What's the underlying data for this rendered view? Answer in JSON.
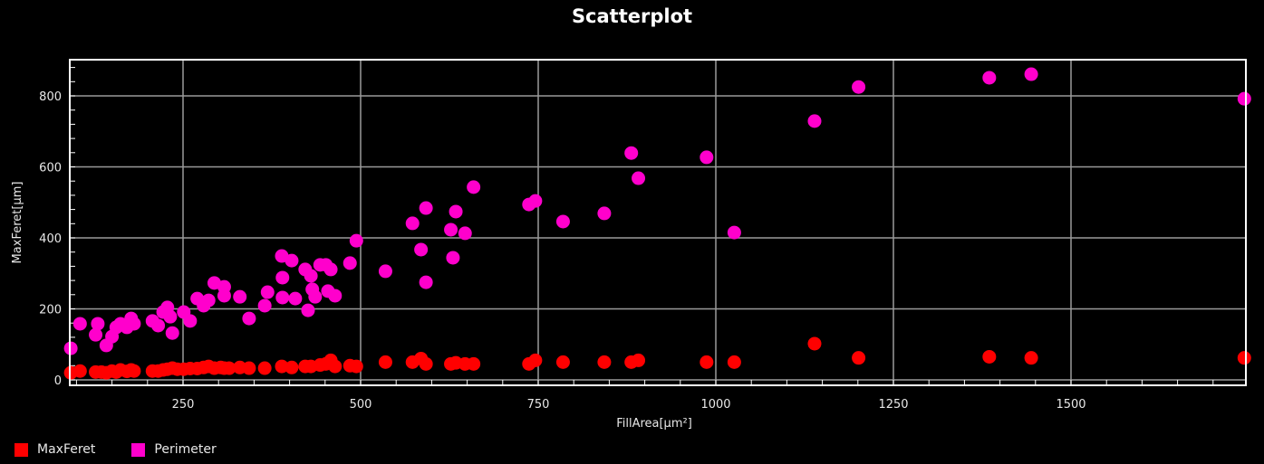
{
  "chart_data": {
    "type": "scatter",
    "title": "Scatterplot",
    "xlabel": "FillArea[µm²]",
    "ylabel": "MaxFeret[µm]",
    "xlim": [
      90,
      1746
    ],
    "ylim": [
      -15,
      900
    ],
    "xticks": [
      250,
      500,
      750,
      1000,
      1250,
      1500
    ],
    "yticks": [
      0,
      200,
      400,
      600,
      800
    ],
    "grid": true,
    "legend_position": "bottom-left",
    "series": [
      {
        "name": "MaxFeret",
        "color": "#ff0000",
        "points": [
          [
            92,
            20
          ],
          [
            105,
            25
          ],
          [
            127,
            22
          ],
          [
            135,
            22
          ],
          [
            142,
            20
          ],
          [
            150,
            25
          ],
          [
            156,
            22
          ],
          [
            162,
            28
          ],
          [
            171,
            24
          ],
          [
            177,
            28
          ],
          [
            181,
            25
          ],
          [
            207,
            25
          ],
          [
            215,
            25
          ],
          [
            222,
            28
          ],
          [
            228,
            30
          ],
          [
            235,
            33
          ],
          [
            242,
            30
          ],
          [
            251,
            30
          ],
          [
            260,
            32
          ],
          [
            270,
            32
          ],
          [
            279,
            35
          ],
          [
            286,
            38
          ],
          [
            294,
            33
          ],
          [
            303,
            35
          ],
          [
            308,
            33
          ],
          [
            315,
            33
          ],
          [
            330,
            35
          ],
          [
            343,
            33
          ],
          [
            365,
            33
          ],
          [
            389,
            38
          ],
          [
            403,
            35
          ],
          [
            422,
            38
          ],
          [
            430,
            38
          ],
          [
            443,
            42
          ],
          [
            451,
            45
          ],
          [
            458,
            55
          ],
          [
            464,
            38
          ],
          [
            485,
            40
          ],
          [
            494,
            38
          ],
          [
            535,
            50
          ],
          [
            573,
            50
          ],
          [
            585,
            60
          ],
          [
            592,
            45
          ],
          [
            627,
            45
          ],
          [
            634,
            48
          ],
          [
            647,
            45
          ],
          [
            659,
            45
          ],
          [
            737,
            45
          ],
          [
            746,
            55
          ],
          [
            785,
            50
          ],
          [
            843,
            50
          ],
          [
            881,
            50
          ],
          [
            891,
            55
          ],
          [
            987,
            50
          ],
          [
            1026,
            50
          ],
          [
            1139,
            102
          ],
          [
            1201,
            62
          ],
          [
            1385,
            65
          ],
          [
            1444,
            62
          ],
          [
            1744,
            62
          ]
        ]
      },
      {
        "name": "Perimeter",
        "color": "#ff00cc",
        "points": [
          [
            92,
            89
          ],
          [
            105,
            158
          ],
          [
            127,
            127
          ],
          [
            130,
            158
          ],
          [
            142,
            97
          ],
          [
            150,
            122
          ],
          [
            156,
            148
          ],
          [
            162,
            158
          ],
          [
            171,
            148
          ],
          [
            177,
            173
          ],
          [
            181,
            158
          ],
          [
            207,
            166
          ],
          [
            215,
            153
          ],
          [
            222,
            191
          ],
          [
            228,
            204
          ],
          [
            232,
            178
          ],
          [
            235,
            132
          ],
          [
            251,
            191
          ],
          [
            260,
            166
          ],
          [
            270,
            229
          ],
          [
            279,
            209
          ],
          [
            286,
            224
          ],
          [
            294,
            273
          ],
          [
            308,
            262
          ],
          [
            308,
            237
          ],
          [
            330,
            234
          ],
          [
            343,
            173
          ],
          [
            365,
            209
          ],
          [
            369,
            247
          ],
          [
            389,
            349
          ],
          [
            390,
            288
          ],
          [
            390,
            232
          ],
          [
            403,
            336
          ],
          [
            408,
            229
          ],
          [
            422,
            311
          ],
          [
            426,
            196
          ],
          [
            430,
            293
          ],
          [
            432,
            255
          ],
          [
            436,
            234
          ],
          [
            443,
            324
          ],
          [
            451,
            324
          ],
          [
            454,
            250
          ],
          [
            458,
            311
          ],
          [
            464,
            237
          ],
          [
            485,
            329
          ],
          [
            494,
            392
          ],
          [
            535,
            306
          ],
          [
            573,
            441
          ],
          [
            585,
            367
          ],
          [
            592,
            484
          ],
          [
            592,
            275
          ],
          [
            627,
            423
          ],
          [
            630,
            344
          ],
          [
            634,
            474
          ],
          [
            647,
            413
          ],
          [
            659,
            543
          ],
          [
            737,
            494
          ],
          [
            746,
            504
          ],
          [
            785,
            446
          ],
          [
            843,
            469
          ],
          [
            881,
            639
          ],
          [
            891,
            568
          ],
          [
            987,
            627
          ],
          [
            1026,
            415
          ],
          [
            1139,
            729
          ],
          [
            1201,
            825
          ],
          [
            1385,
            851
          ],
          [
            1444,
            861
          ],
          [
            1744,
            792
          ]
        ]
      }
    ]
  },
  "legend": {
    "items": [
      {
        "label": "MaxFeret",
        "color": "#ff0000"
      },
      {
        "label": "Perimeter",
        "color": "#ff00cc"
      }
    ]
  }
}
